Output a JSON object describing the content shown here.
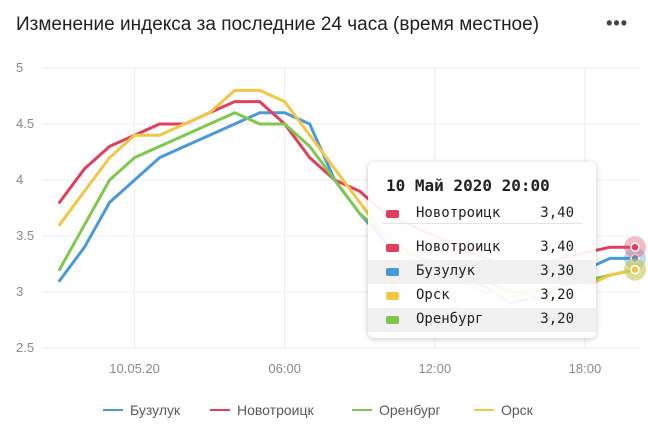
{
  "header": {
    "title": "Изменение индекса за последние 24 часа (время местное)",
    "menu_icon": "more-dots-icon"
  },
  "chart_data": {
    "type": "line",
    "title": "Изменение индекса за последние 24 часа (время местное)",
    "y_ticks": [
      "5",
      "4.5",
      "4",
      "3.5",
      "3",
      "2.5"
    ],
    "ylim": [
      2.5,
      5
    ],
    "x_ticks": [
      "10.05.20",
      "06:00",
      "12:00",
      "18:00"
    ],
    "x_tick_hours": [
      0,
      6,
      12,
      18
    ],
    "xlim": [
      -3.7,
      20.2
    ],
    "grid": true,
    "legend_position": "bottom",
    "series": [
      {
        "name": "Бузулук",
        "color": "#4a9ad9",
        "x": [
          -3,
          -2,
          -1,
          0,
          1,
          2,
          3,
          4,
          5,
          6,
          7,
          8,
          9,
          10,
          11,
          12,
          13,
          14,
          15,
          16,
          17,
          18,
          19,
          20
        ],
        "y": [
          3.1,
          3.4,
          3.8,
          4.0,
          4.2,
          4.3,
          4.4,
          4.5,
          4.6,
          4.6,
          4.5,
          4.0,
          3.7,
          3.45,
          3.3,
          3.2,
          3.15,
          3.05,
          2.9,
          2.95,
          3.05,
          3.2,
          3.3,
          3.3
        ]
      },
      {
        "name": "Новотроицк",
        "color": "#e0405e",
        "x": [
          -3,
          -2,
          -1,
          0,
          1,
          2,
          3,
          4,
          5,
          6,
          7,
          8,
          9,
          10,
          11,
          12,
          13,
          14,
          15,
          16,
          17,
          18,
          19,
          20
        ],
        "y": [
          3.8,
          4.1,
          4.3,
          4.4,
          4.5,
          4.5,
          4.6,
          4.7,
          4.7,
          4.5,
          4.2,
          4.0,
          3.9,
          3.7,
          3.6,
          3.5,
          3.4,
          3.3,
          3.2,
          3.2,
          3.3,
          3.35,
          3.4,
          3.4
        ]
      },
      {
        "name": "Оренбург",
        "color": "#7fc84e",
        "x": [
          -3,
          -2,
          -1,
          0,
          1,
          2,
          3,
          4,
          5,
          6,
          7,
          8,
          9,
          10,
          11,
          12,
          13,
          14,
          15,
          16,
          17,
          18,
          19,
          20
        ],
        "y": [
          3.2,
          3.6,
          4.0,
          4.2,
          4.3,
          4.4,
          4.5,
          4.6,
          4.5,
          4.5,
          4.3,
          4.0,
          3.7,
          3.5,
          3.35,
          3.25,
          3.15,
          3.1,
          3.0,
          3.0,
          3.05,
          3.1,
          3.15,
          3.2
        ]
      },
      {
        "name": "Орск",
        "color": "#f2c744",
        "x": [
          -3,
          -2,
          -1,
          0,
          1,
          2,
          3,
          4,
          5,
          6,
          7,
          8,
          9,
          10,
          11,
          12,
          13,
          14,
          15,
          16,
          17,
          18,
          19,
          20
        ],
        "y": [
          3.6,
          3.9,
          4.2,
          4.4,
          4.4,
          4.5,
          4.6,
          4.8,
          4.8,
          4.7,
          4.4,
          4.1,
          3.8,
          3.5,
          3.3,
          3.2,
          3.1,
          3.0,
          2.95,
          3.0,
          2.95,
          3.05,
          3.15,
          3.2
        ]
      }
    ],
    "hover_marker_x": 20
  },
  "tooltip": {
    "date": "10 Май 2020 20:00",
    "highlight": {
      "name": "Новотроицк",
      "value": "3,40",
      "color": "#e0405e"
    },
    "rows": [
      {
        "name": "Новотроицк",
        "value": "3,40",
        "color": "#e0405e"
      },
      {
        "name": "Бузулук",
        "value": "3,30",
        "color": "#4a9ad9"
      },
      {
        "name": "Орск",
        "value": "3,20",
        "color": "#f2c744"
      },
      {
        "name": "Оренбург",
        "value": "3,20",
        "color": "#7fc84e"
      }
    ]
  },
  "legend": [
    {
      "name": "Бузулук",
      "color": "#4a9ad9"
    },
    {
      "name": "Новотроицк",
      "color": "#e0405e"
    },
    {
      "name": "Оренбург",
      "color": "#7fc84e"
    },
    {
      "name": "Орск",
      "color": "#f2c744"
    }
  ]
}
